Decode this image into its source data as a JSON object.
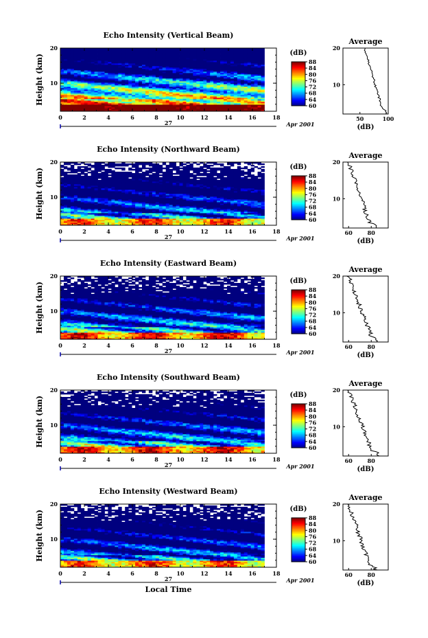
{
  "chart_data": [
    {
      "type": "heatmap",
      "title": "Echo Intensity (Vertical Beam)",
      "ylabel": "Height (km)",
      "xlim": [
        0,
        18
      ],
      "xticks": [
        0,
        2,
        4,
        6,
        8,
        10,
        12,
        14,
        16,
        18
      ],
      "ylim": [
        2,
        20
      ],
      "yticks": [
        10,
        20
      ],
      "date_label": "27",
      "month_label": "Apr 2001",
      "data_end_hour": 17,
      "colorbar": {
        "unit": "(dB)",
        "ticks": [
          "60",
          "64",
          "68",
          "72",
          "76",
          "80",
          "84",
          "88"
        ],
        "range": [
          60,
          88
        ]
      },
      "profile": {
        "title": "Average",
        "xlabel": "(dB)",
        "xticks": [
          "50",
          "100"
        ],
        "xlim": [
          20,
          100
        ],
        "yticks": [
          10,
          20
        ],
        "ylim": [
          2,
          20
        ]
      },
      "trend_low": 92,
      "trend_high": 58
    },
    {
      "type": "heatmap",
      "title": "Echo Intensity (Northward Beam)",
      "ylabel": "Height (km)",
      "xlim": [
        0,
        18
      ],
      "xticks": [
        0,
        2,
        4,
        6,
        8,
        10,
        12,
        14,
        16,
        18
      ],
      "ylim": [
        2,
        20
      ],
      "yticks": [
        10,
        20
      ],
      "date_label": "27",
      "month_label": "Apr 2001",
      "data_end_hour": 17,
      "colorbar": {
        "unit": "(dB)",
        "ticks": [
          "60",
          "64",
          "68",
          "72",
          "76",
          "80",
          "84",
          "88"
        ],
        "range": [
          60,
          88
        ]
      },
      "profile": {
        "title": "Average",
        "xlabel": "(dB)",
        "xticks": [
          "60",
          "80"
        ],
        "xlim": [
          55,
          95
        ],
        "yticks": [
          10,
          20
        ],
        "ylim": [
          2,
          20
        ]
      },
      "trend_low": 80,
      "trend_high": 60
    },
    {
      "type": "heatmap",
      "title": "Echo Intensity (Eastward Beam)",
      "ylabel": "Height (km)",
      "xlim": [
        0,
        18
      ],
      "xticks": [
        0,
        2,
        4,
        6,
        8,
        10,
        12,
        14,
        16,
        18
      ],
      "ylim": [
        2,
        20
      ],
      "yticks": [
        10,
        20
      ],
      "date_label": "27",
      "month_label": "Apr 2001",
      "data_end_hour": 17,
      "colorbar": {
        "unit": "(dB)",
        "ticks": [
          "60",
          "64",
          "68",
          "72",
          "76",
          "80",
          "84",
          "88"
        ],
        "range": [
          60,
          88
        ]
      },
      "profile": {
        "title": "Average",
        "xlabel": "(dB)",
        "xticks": [
          "60",
          "80"
        ],
        "xlim": [
          55,
          95
        ],
        "yticks": [
          10,
          20
        ],
        "ylim": [
          2,
          20
        ]
      },
      "trend_low": 82,
      "trend_high": 60
    },
    {
      "type": "heatmap",
      "title": "Echo Intensity (Southward Beam)",
      "ylabel": "Height (km)",
      "xlim": [
        0,
        18
      ],
      "xticks": [
        0,
        2,
        4,
        6,
        8,
        10,
        12,
        14,
        16,
        18
      ],
      "ylim": [
        2,
        20
      ],
      "yticks": [
        10,
        20
      ],
      "date_label": "27",
      "month_label": "Apr 2001",
      "data_end_hour": 17,
      "colorbar": {
        "unit": "(dB)",
        "ticks": [
          "60",
          "64",
          "68",
          "72",
          "76",
          "80",
          "84",
          "88"
        ],
        "range": [
          60,
          88
        ]
      },
      "profile": {
        "title": "Average",
        "xlabel": "(dB)",
        "xticks": [
          "60",
          "80"
        ],
        "xlim": [
          55,
          95
        ],
        "yticks": [
          10,
          20
        ],
        "ylim": [
          2,
          20
        ]
      },
      "trend_low": 82,
      "trend_high": 60
    },
    {
      "type": "heatmap",
      "title": "Echo Intensity (Westward Beam)",
      "ylabel": "Height (km)",
      "xlabel": "Local Time",
      "xlim": [
        0,
        18
      ],
      "xticks": [
        0,
        2,
        4,
        6,
        8,
        10,
        12,
        14,
        16,
        18
      ],
      "ylim": [
        2,
        20
      ],
      "yticks": [
        10,
        20
      ],
      "date_label": "27",
      "month_label": "Apr 2001",
      "data_end_hour": 17,
      "colorbar": {
        "unit": "(dB)",
        "ticks": [
          "60",
          "64",
          "68",
          "72",
          "76",
          "80",
          "84",
          "88"
        ],
        "range": [
          60,
          88
        ]
      },
      "profile": {
        "title": "Average",
        "xlabel": "(dB)",
        "xticks": [
          "60",
          "80"
        ],
        "xlim": [
          55,
          95
        ],
        "yticks": [
          10,
          20
        ],
        "ylim": [
          2,
          20
        ]
      },
      "trend_low": 80,
      "trend_high": 60
    }
  ],
  "colors": {
    "jet": [
      "#00007f",
      "#0000ff",
      "#007fff",
      "#00ffff",
      "#7fff7f",
      "#ffff00",
      "#ff7f00",
      "#ff0000",
      "#7f0000"
    ],
    "blank": "#ffffff"
  }
}
